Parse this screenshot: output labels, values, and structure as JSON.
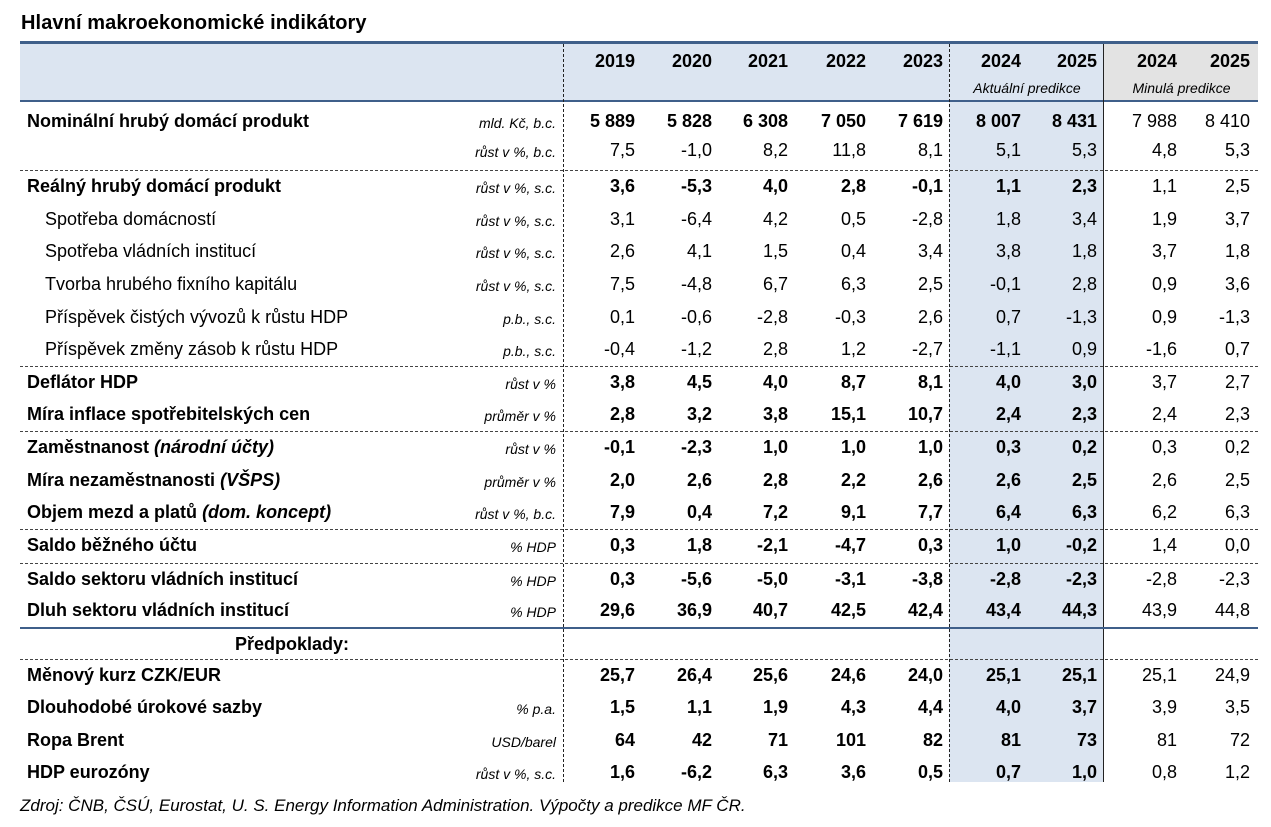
{
  "title": "Hlavní makroekonomické indikátory",
  "years": [
    "2019",
    "2020",
    "2021",
    "2022",
    "2023",
    "2024",
    "2025",
    "2024",
    "2025"
  ],
  "subheaders": {
    "actual": "Aktuální predikce",
    "previous": "Minulá predikce"
  },
  "rows": [
    {
      "label": "Nominální hrubý domácí produkt",
      "unit": "mld. Kč, b.c.",
      "values": [
        "5 889",
        "5 828",
        "6 308",
        "7 050",
        "7 619",
        "8 007",
        "8 431",
        "7 988",
        "8 410"
      ]
    },
    {
      "label": "",
      "unit": "růst v %, b.c.",
      "values": [
        "7,5",
        "-1,0",
        "8,2",
        "11,8",
        "8,1",
        "5,1",
        "5,3",
        "4,8",
        "5,3"
      ]
    },
    {
      "label": "Reálný hrubý domácí produkt",
      "unit": "růst v %, s.c.",
      "values": [
        "3,6",
        "-5,3",
        "4,0",
        "2,8",
        "-0,1",
        "1,1",
        "2,3",
        "1,1",
        "2,5"
      ]
    },
    {
      "label": "Spotřeba domácností",
      "unit": "růst v %, s.c.",
      "values": [
        "3,1",
        "-6,4",
        "4,2",
        "0,5",
        "-2,8",
        "1,8",
        "3,4",
        "1,9",
        "3,7"
      ]
    },
    {
      "label": "Spotřeba vládních institucí",
      "unit": "růst v %, s.c.",
      "values": [
        "2,6",
        "4,1",
        "1,5",
        "0,4",
        "3,4",
        "3,8",
        "1,8",
        "3,7",
        "1,8"
      ]
    },
    {
      "label": "Tvorba hrubého fixního kapitálu",
      "unit": "růst v %, s.c.",
      "values": [
        "7,5",
        "-4,8",
        "6,7",
        "6,3",
        "2,5",
        "-0,1",
        "2,8",
        "0,9",
        "3,6"
      ]
    },
    {
      "label": "Příspěvek čistých vývozů k růstu HDP",
      "unit": "p.b., s.c.",
      "values": [
        "0,1",
        "-0,6",
        "-2,8",
        "-0,3",
        "2,6",
        "0,7",
        "-1,3",
        "0,9",
        "-1,3"
      ]
    },
    {
      "label": "Příspěvek změny zásob k růstu HDP",
      "unit": "p.b., s.c.",
      "values": [
        "-0,4",
        "-1,2",
        "2,8",
        "1,2",
        "-2,7",
        "-1,1",
        "0,9",
        "-1,6",
        "0,7"
      ]
    },
    {
      "label": "Deflátor HDP",
      "unit": "růst v %",
      "values": [
        "3,8",
        "4,5",
        "4,0",
        "8,7",
        "8,1",
        "4,0",
        "3,0",
        "3,7",
        "2,7"
      ]
    },
    {
      "label": "Míra inflace spotřebitelských cen",
      "unit": "průměr v %",
      "values": [
        "2,8",
        "3,2",
        "3,8",
        "15,1",
        "10,7",
        "2,4",
        "2,3",
        "2,4",
        "2,3"
      ]
    },
    {
      "label": "Zaměstnanost",
      "label_note": "(národní účty)",
      "unit": "růst v %",
      "values": [
        "-0,1",
        "-2,3",
        "1,0",
        "1,0",
        "1,0",
        "0,3",
        "0,2",
        "0,3",
        "0,2"
      ]
    },
    {
      "label": "Míra nezaměstnanosti",
      "label_note": "(VŠPS)",
      "unit": "průměr v %",
      "values": [
        "2,0",
        "2,6",
        "2,8",
        "2,2",
        "2,6",
        "2,6",
        "2,5",
        "2,6",
        "2,5"
      ]
    },
    {
      "label": "Objem mezd a platů",
      "label_note": "(dom. koncept)",
      "unit": "růst v %, b.c.",
      "values": [
        "7,9",
        "0,4",
        "7,2",
        "9,1",
        "7,7",
        "6,4",
        "6,3",
        "6,2",
        "6,3"
      ]
    },
    {
      "label": "Saldo běžného účtu",
      "unit": "% HDP",
      "values": [
        "0,3",
        "1,8",
        "-2,1",
        "-4,7",
        "0,3",
        "1,0",
        "-0,2",
        "1,4",
        "0,0"
      ]
    },
    {
      "label": "Saldo sektoru vládních institucí",
      "unit": "% HDP",
      "values": [
        "0,3",
        "-5,6",
        "-5,0",
        "-3,1",
        "-3,8",
        "-2,8",
        "-2,3",
        "-2,8",
        "-2,3"
      ]
    },
    {
      "label": "Dluh sektoru vládních institucí",
      "unit": "% HDP",
      "values": [
        "29,6",
        "36,9",
        "40,7",
        "42,5",
        "42,4",
        "43,4",
        "44,3",
        "43,9",
        "44,8"
      ]
    },
    {
      "label": "Měnový kurz CZK/EUR",
      "unit": "",
      "values": [
        "25,7",
        "26,4",
        "25,6",
        "24,6",
        "24,0",
        "25,1",
        "25,1",
        "25,1",
        "24,9"
      ]
    },
    {
      "label": "Dlouhodobé úrokové sazby",
      "unit": "% p.a.",
      "values": [
        "1,5",
        "1,1",
        "1,9",
        "4,3",
        "4,4",
        "4,0",
        "3,7",
        "3,9",
        "3,5"
      ]
    },
    {
      "label": "Ropa Brent",
      "unit": "USD/barel",
      "values": [
        "64",
        "42",
        "71",
        "101",
        "82",
        "81",
        "73",
        "81",
        "72"
      ]
    },
    {
      "label": "HDP eurozóny",
      "unit": "růst v %, s.c.",
      "values": [
        "1,6",
        "-6,2",
        "6,3",
        "3,6",
        "0,5",
        "0,7",
        "1,0",
        "0,8",
        "1,2"
      ]
    }
  ],
  "assumptions_label": "Předpoklady:",
  "source": "Zdroj: ČNB, ČSÚ, Eurostat, U. S. Energy Information Administration. Výpočty a predikce MF ČR."
}
